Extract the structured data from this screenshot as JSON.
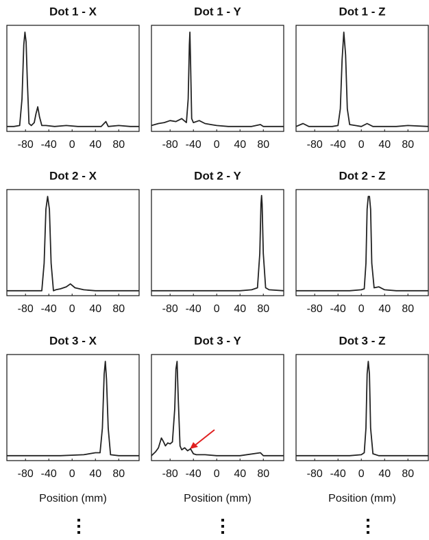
{
  "chart_data": [
    {
      "type": "line",
      "title": "Dot 1 - X",
      "xlim": [
        -112,
        115
      ],
      "ylim": [
        -0.03,
        1.05
      ],
      "xticks": [
        -80,
        -40,
        0,
        40,
        80
      ],
      "color": "#222222",
      "x": [
        -112,
        -100,
        -90,
        -86,
        -83,
        -81,
        -79,
        -77,
        -74,
        -70,
        -65,
        -62,
        -59,
        -56,
        -52,
        -45,
        -30,
        -10,
        10,
        30,
        50,
        58,
        62,
        80,
        100,
        115
      ],
      "values": [
        0.02,
        0.02,
        0.03,
        0.3,
        0.85,
        0.98,
        0.88,
        0.5,
        0.05,
        0.03,
        0.06,
        0.15,
        0.22,
        0.12,
        0.03,
        0.03,
        0.02,
        0.03,
        0.02,
        0.02,
        0.02,
        0.07,
        0.02,
        0.03,
        0.02,
        0.02
      ]
    },
    {
      "type": "line",
      "title": "Dot 1 - Y",
      "xlim": [
        -112,
        115
      ],
      "ylim": [
        -0.03,
        1.05
      ],
      "xticks": [
        -80,
        -40,
        0,
        40,
        80
      ],
      "color": "#222222",
      "x": [
        -112,
        -100,
        -90,
        -80,
        -70,
        -60,
        -52,
        -49,
        -47,
        -46,
        -45,
        -43,
        -40,
        -30,
        -20,
        -10,
        0,
        20,
        40,
        60,
        75,
        80,
        100,
        115
      ],
      "values": [
        0.03,
        0.05,
        0.06,
        0.08,
        0.07,
        0.1,
        0.06,
        0.3,
        0.85,
        0.98,
        0.7,
        0.1,
        0.06,
        0.08,
        0.05,
        0.04,
        0.03,
        0.02,
        0.02,
        0.02,
        0.04,
        0.02,
        0.02,
        0.02
      ]
    },
    {
      "type": "line",
      "title": "Dot 1 - Z",
      "xlim": [
        -112,
        115
      ],
      "ylim": [
        -0.03,
        1.05
      ],
      "xticks": [
        -80,
        -40,
        0,
        40,
        80
      ],
      "color": "#222222",
      "x": [
        -112,
        -100,
        -90,
        -70,
        -50,
        -40,
        -36,
        -33,
        -30,
        -27,
        -24,
        -20,
        -10,
        0,
        10,
        20,
        40,
        60,
        80,
        115
      ],
      "values": [
        0.02,
        0.05,
        0.02,
        0.02,
        0.02,
        0.03,
        0.2,
        0.7,
        0.98,
        0.75,
        0.2,
        0.04,
        0.03,
        0.02,
        0.05,
        0.02,
        0.02,
        0.02,
        0.03,
        0.02
      ]
    },
    {
      "type": "line",
      "title": "Dot 2 - X",
      "xlim": [
        -112,
        115
      ],
      "ylim": [
        -0.03,
        1.05
      ],
      "xticks": [
        -80,
        -40,
        0,
        40,
        80
      ],
      "color": "#222222",
      "x": [
        -112,
        -80,
        -60,
        -52,
        -48,
        -45,
        -42,
        -39,
        -36,
        -32,
        -28,
        -20,
        -10,
        -3,
        5,
        20,
        40,
        60,
        80,
        115
      ],
      "values": [
        0.02,
        0.02,
        0.02,
        0.02,
        0.3,
        0.85,
        0.98,
        0.85,
        0.3,
        0.02,
        0.03,
        0.04,
        0.06,
        0.09,
        0.05,
        0.03,
        0.02,
        0.02,
        0.02,
        0.02
      ]
    },
    {
      "type": "line",
      "title": "Dot 2 - Y",
      "xlim": [
        -112,
        115
      ],
      "ylim": [
        -0.03,
        1.05
      ],
      "xticks": [
        -80,
        -40,
        0,
        40,
        80
      ],
      "color": "#222222",
      "x": [
        -112,
        -80,
        -40,
        0,
        40,
        60,
        70,
        74,
        76,
        77,
        78,
        80,
        84,
        90,
        115
      ],
      "values": [
        0.02,
        0.02,
        0.02,
        0.02,
        0.02,
        0.03,
        0.05,
        0.4,
        0.9,
        0.99,
        0.9,
        0.4,
        0.05,
        0.03,
        0.02
      ]
    },
    {
      "type": "line",
      "title": "Dot 2 - Z",
      "xlim": [
        -112,
        115
      ],
      "ylim": [
        -0.03,
        1.05
      ],
      "xticks": [
        -80,
        -40,
        0,
        40,
        80
      ],
      "color": "#222222",
      "x": [
        -112,
        -60,
        -20,
        0,
        5,
        8,
        10,
        12,
        14,
        16,
        18,
        22,
        30,
        40,
        60,
        115
      ],
      "values": [
        0.02,
        0.02,
        0.02,
        0.03,
        0.04,
        0.3,
        0.85,
        0.98,
        0.98,
        0.85,
        0.3,
        0.05,
        0.06,
        0.03,
        0.02,
        0.02
      ]
    },
    {
      "type": "line",
      "title": "Dot 3 - X",
      "xlabel": "Position (mm)",
      "xlim": [
        -112,
        115
      ],
      "ylim": [
        -0.03,
        1.05
      ],
      "xticks": [
        -80,
        -40,
        0,
        40,
        80
      ],
      "color": "#222222",
      "x": [
        -112,
        -60,
        -20,
        20,
        40,
        48,
        52,
        55,
        57,
        59,
        62,
        66,
        80,
        115
      ],
      "values": [
        0.02,
        0.02,
        0.02,
        0.03,
        0.05,
        0.05,
        0.3,
        0.85,
        0.98,
        0.8,
        0.3,
        0.03,
        0.02,
        0.02
      ]
    },
    {
      "type": "line",
      "title": "Dot 3 - Y",
      "xlabel": "Position (mm)",
      "xlim": [
        -112,
        115
      ],
      "ylim": [
        -0.03,
        1.05
      ],
      "xticks": [
        -80,
        -40,
        0,
        40,
        80
      ],
      "color": "#222222",
      "x": [
        -112,
        -105,
        -100,
        -95,
        -92,
        -88,
        -84,
        -80,
        -76,
        -72,
        -70,
        -68,
        -66,
        -63,
        -60,
        -55,
        -50,
        -45,
        -40,
        -35,
        -20,
        0,
        40,
        75,
        80,
        115
      ],
      "values": [
        0.02,
        0.06,
        0.1,
        0.2,
        0.17,
        0.12,
        0.15,
        0.14,
        0.16,
        0.5,
        0.9,
        0.98,
        0.6,
        0.12,
        0.08,
        0.1,
        0.07,
        0.09,
        0.04,
        0.03,
        0.03,
        0.02,
        0.02,
        0.05,
        0.02,
        0.02
      ]
    },
    {
      "type": "line",
      "title": "Dot 3 - Z",
      "xlabel": "Position (mm)",
      "xlim": [
        -112,
        115
      ],
      "ylim": [
        -0.03,
        1.05
      ],
      "xticks": [
        -80,
        -40,
        0,
        40,
        80
      ],
      "color": "#222222",
      "x": [
        -112,
        -60,
        -20,
        0,
        5,
        8,
        10,
        12,
        14,
        16,
        20,
        30,
        60,
        115
      ],
      "values": [
        0.02,
        0.02,
        0.02,
        0.03,
        0.05,
        0.3,
        0.85,
        0.98,
        0.85,
        0.3,
        0.04,
        0.02,
        0.02,
        0.02
      ]
    }
  ]
}
